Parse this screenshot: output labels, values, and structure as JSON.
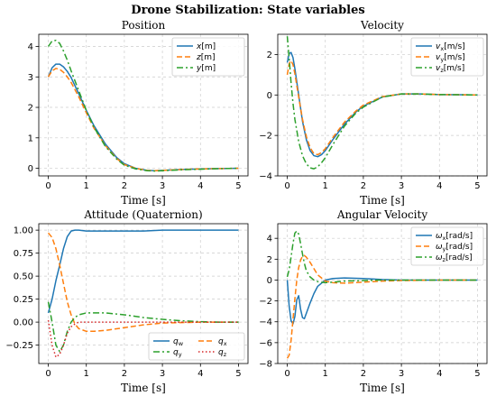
{
  "figure_title": "Drone Stabilization: State variables",
  "colors": {
    "blue": "#1f77b4",
    "orange": "#ff7f0e",
    "green": "#2ca02c",
    "red": "#d62728"
  },
  "chart_data": [
    {
      "type": "line",
      "title": "Position",
      "xlabel": "Time [s]",
      "ylabel": "",
      "xlim": [
        -0.25,
        5.25
      ],
      "ylim": [
        -0.25,
        4.4
      ],
      "xticks": [
        0,
        1,
        2,
        3,
        4,
        5
      ],
      "yticks": [
        0,
        1,
        2,
        3,
        4
      ],
      "grid": true,
      "legend_position": "top-right",
      "legend_columns": 1,
      "x": [
        0,
        0.1,
        0.2,
        0.3,
        0.4,
        0.5,
        0.6,
        0.8,
        1.0,
        1.2,
        1.5,
        1.8,
        2.0,
        2.3,
        2.6,
        2.8,
        3.0,
        3.5,
        4.0,
        4.5,
        5.0
      ],
      "series": [
        {
          "name": "x[m]",
          "color": "#1f77b4",
          "dash": "solid",
          "values": [
            3.0,
            3.3,
            3.42,
            3.42,
            3.33,
            3.18,
            2.98,
            2.45,
            1.9,
            1.4,
            0.8,
            0.35,
            0.15,
            0.0,
            -0.07,
            -0.08,
            -0.07,
            -0.04,
            -0.02,
            -0.01,
            0.0
          ]
        },
        {
          "name": "z[m]",
          "color": "#ff7f0e",
          "dash": "dashed",
          "values": [
            3.0,
            3.2,
            3.28,
            3.25,
            3.15,
            3.0,
            2.82,
            2.35,
            1.82,
            1.32,
            0.75,
            0.32,
            0.12,
            0.0,
            -0.07,
            -0.08,
            -0.07,
            -0.04,
            -0.02,
            -0.01,
            0.0
          ]
        },
        {
          "name": "y[m]",
          "color": "#2ca02c",
          "dash": "dashdot",
          "values": [
            4.0,
            4.18,
            4.2,
            4.1,
            3.85,
            3.55,
            3.2,
            2.55,
            1.9,
            1.35,
            0.72,
            0.3,
            0.1,
            -0.02,
            -0.08,
            -0.09,
            -0.08,
            -0.05,
            -0.03,
            -0.01,
            0.0
          ]
        }
      ]
    },
    {
      "type": "line",
      "title": "Velocity",
      "xlabel": "Time [s]",
      "ylabel": "",
      "xlim": [
        -0.25,
        5.25
      ],
      "ylim": [
        -4.0,
        3.0
      ],
      "xticks": [
        0,
        1,
        2,
        3,
        4,
        5
      ],
      "yticks": [
        -4,
        -2,
        0,
        2
      ],
      "grid": true,
      "legend_position": "top-right",
      "legend_columns": 1,
      "x": [
        0,
        0.05,
        0.1,
        0.15,
        0.2,
        0.3,
        0.4,
        0.5,
        0.6,
        0.7,
        0.8,
        0.9,
        1.0,
        1.2,
        1.5,
        1.8,
        2.0,
        2.5,
        3.0,
        3.5,
        4.0,
        4.5,
        5.0
      ],
      "series": [
        {
          "name": "v_x[m/s]",
          "color": "#1f77b4",
          "dash": "solid",
          "values": [
            1.6,
            2.05,
            2.1,
            1.85,
            1.3,
            0.0,
            -1.3,
            -2.2,
            -2.75,
            -3.0,
            -3.05,
            -2.95,
            -2.75,
            -2.2,
            -1.45,
            -0.85,
            -0.55,
            -0.1,
            0.05,
            0.05,
            0.02,
            0.01,
            0.0
          ]
        },
        {
          "name": "v_y[m/s]",
          "color": "#ff7f0e",
          "dash": "dashed",
          "values": [
            1.0,
            1.55,
            1.7,
            1.5,
            1.05,
            -0.1,
            -1.2,
            -2.05,
            -2.6,
            -2.9,
            -2.95,
            -2.85,
            -2.65,
            -2.1,
            -1.35,
            -0.8,
            -0.5,
            -0.08,
            0.05,
            0.05,
            0.02,
            0.01,
            0.0
          ]
        },
        {
          "name": "v_z[m/s]",
          "color": "#2ca02c",
          "dash": "dashdot",
          "values": [
            2.9,
            1.8,
            0.6,
            -0.4,
            -1.2,
            -2.3,
            -3.0,
            -3.4,
            -3.6,
            -3.65,
            -3.55,
            -3.35,
            -3.1,
            -2.45,
            -1.55,
            -0.9,
            -0.6,
            -0.1,
            0.05,
            0.05,
            0.02,
            0.01,
            0.0
          ]
        }
      ]
    },
    {
      "type": "line",
      "title": "Attitude (Quaternion)",
      "xlabel": "Time [s]",
      "ylabel": "",
      "xlim": [
        -0.25,
        5.25
      ],
      "ylim": [
        -0.45,
        1.07
      ],
      "xticks": [
        0,
        1,
        2,
        3,
        4,
        5
      ],
      "yticks": [
        -0.25,
        0.0,
        0.25,
        0.5,
        0.75,
        1.0
      ],
      "ytick_labels": [
        "−0.25",
        "0.00",
        "0.25",
        "0.50",
        "0.75",
        "1.00"
      ],
      "grid": true,
      "legend_position": "bottom-right",
      "legend_columns": 2,
      "x": [
        0,
        0.1,
        0.2,
        0.3,
        0.4,
        0.5,
        0.6,
        0.7,
        0.8,
        1.0,
        1.2,
        1.5,
        2.0,
        2.5,
        3.0,
        3.5,
        4.0,
        4.5,
        5.0
      ],
      "series": [
        {
          "name": "q_w",
          "color": "#1f77b4",
          "dash": "solid",
          "values": [
            0.1,
            0.25,
            0.45,
            0.62,
            0.8,
            0.93,
            0.99,
            1.0,
            1.0,
            0.99,
            0.99,
            0.99,
            0.99,
            0.99,
            1.0,
            1.0,
            1.0,
            1.0,
            1.0
          ]
        },
        {
          "name": "q_x",
          "color": "#ff7f0e",
          "dash": "dashed",
          "values": [
            0.97,
            0.92,
            0.8,
            0.62,
            0.42,
            0.22,
            0.08,
            -0.02,
            -0.07,
            -0.1,
            -0.1,
            -0.09,
            -0.06,
            -0.03,
            -0.01,
            -0.005,
            0.0,
            0.0,
            0.0
          ]
        },
        {
          "name": "q_y",
          "color": "#2ca02c",
          "dash": "dashdot",
          "values": [
            0.22,
            0.0,
            -0.25,
            -0.32,
            -0.25,
            -0.1,
            0.0,
            0.05,
            0.08,
            0.1,
            0.1,
            0.1,
            0.08,
            0.05,
            0.03,
            0.015,
            0.005,
            0.0,
            0.0
          ]
        },
        {
          "name": "q_z",
          "color": "#d62728",
          "dash": "dotted",
          "values": [
            0.02,
            -0.25,
            -0.38,
            -0.35,
            -0.25,
            -0.12,
            -0.05,
            -0.02,
            0.0,
            0.0,
            0.0,
            0.0,
            0.0,
            0.0,
            0.0,
            0.0,
            0.0,
            0.0,
            0.0
          ]
        }
      ]
    },
    {
      "type": "line",
      "title": "Angular Velocity",
      "xlabel": "Time [s]",
      "ylabel": "",
      "xlim": [
        -0.25,
        5.25
      ],
      "ylim": [
        -8.0,
        5.4
      ],
      "xticks": [
        0,
        1,
        2,
        3,
        4,
        5
      ],
      "yticks": [
        -8,
        -6,
        -4,
        -2,
        0,
        2,
        4
      ],
      "grid": true,
      "legend_position": "top-right",
      "legend_columns": 1,
      "x": [
        0,
        0.05,
        0.1,
        0.15,
        0.2,
        0.25,
        0.3,
        0.35,
        0.4,
        0.45,
        0.5,
        0.6,
        0.7,
        0.8,
        1.0,
        1.2,
        1.5,
        2.0,
        2.5,
        3.0,
        3.5,
        4.0,
        4.5,
        5.0
      ],
      "series": [
        {
          "name": "ω_x[rad/s]",
          "color": "#1f77b4",
          "dash": "solid",
          "values": [
            0.0,
            -2.5,
            -3.9,
            -4.2,
            -3.5,
            -1.9,
            -1.5,
            -2.8,
            -3.6,
            -3.7,
            -3.2,
            -2.2,
            -1.3,
            -0.6,
            0.0,
            0.15,
            0.2,
            0.15,
            0.05,
            0.0,
            0.0,
            0.0,
            0.0,
            0.0
          ]
        },
        {
          "name": "ω_y[rad/s]",
          "color": "#ff7f0e",
          "dash": "dashed",
          "values": [
            -7.5,
            -7.2,
            -5.8,
            -3.8,
            -1.8,
            0.0,
            1.2,
            1.9,
            2.3,
            2.35,
            2.2,
            1.7,
            1.1,
            0.5,
            -0.1,
            -0.25,
            -0.3,
            -0.2,
            -0.1,
            -0.05,
            -0.02,
            0.0,
            0.0,
            0.0
          ]
        },
        {
          "name": "ω_z[rad/s]",
          "color": "#2ca02c",
          "dash": "dashdot",
          "values": [
            0.3,
            1.0,
            2.2,
            3.5,
            4.5,
            4.7,
            4.4,
            3.5,
            2.5,
            1.6,
            0.9,
            0.3,
            0.0,
            -0.15,
            -0.25,
            -0.2,
            -0.1,
            -0.05,
            0.0,
            0.0,
            0.0,
            0.0,
            0.0,
            0.0
          ]
        }
      ]
    }
  ]
}
